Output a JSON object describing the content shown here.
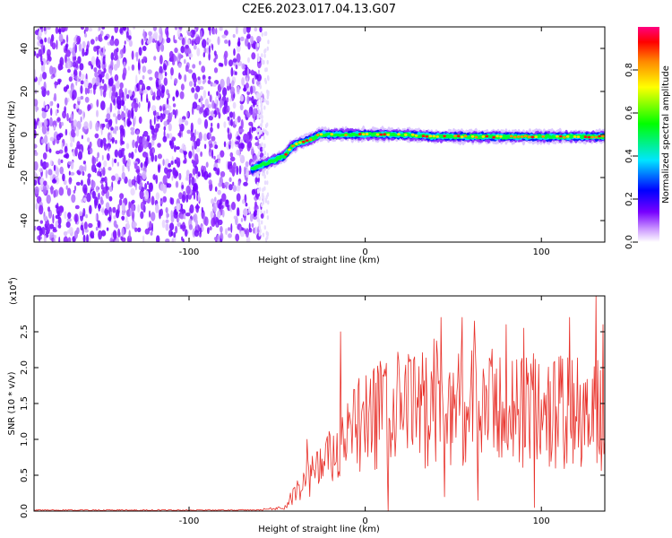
{
  "title": "C2E6.2023.017.04.13.G07",
  "chart_data": [
    {
      "type": "heatmap",
      "xlabel": "Height of straight line (km)",
      "ylabel": "Frequency (Hz)",
      "xlim": [
        -188,
        136
      ],
      "ylim": [
        -50,
        50
      ],
      "xticks": [
        -100,
        0,
        100
      ],
      "yticks": [
        -40,
        -20,
        0,
        20,
        40
      ],
      "noise_region_x": [
        -188,
        -58
      ],
      "signal_trace": [
        {
          "x": -64,
          "y": -16
        },
        {
          "x": -58,
          "y": -14
        },
        {
          "x": -52,
          "y": -12
        },
        {
          "x": -46,
          "y": -10
        },
        {
          "x": -42,
          "y": -6
        },
        {
          "x": -38,
          "y": -4
        },
        {
          "x": -34,
          "y": -3
        },
        {
          "x": -30,
          "y": -2
        },
        {
          "x": -26,
          "y": 0
        },
        {
          "x": -20,
          "y": 0
        },
        {
          "x": -10,
          "y": 0
        },
        {
          "x": 0,
          "y": 0
        },
        {
          "x": 20,
          "y": 0
        },
        {
          "x": 40,
          "y": -1
        },
        {
          "x": 60,
          "y": -1
        },
        {
          "x": 80,
          "y": -1
        },
        {
          "x": 100,
          "y": -1
        },
        {
          "x": 120,
          "y": -1
        },
        {
          "x": 136,
          "y": -1
        }
      ],
      "colorbar": {
        "label": "Normalized spectral amplitude",
        "ticks": [
          "0.0",
          "0.2",
          "0.4",
          "0.6",
          "0.8"
        ],
        "colors": [
          "#ffffff",
          "#cc99ff",
          "#7700ff",
          "#0000ff",
          "#00e5ff",
          "#00ff00",
          "#ffff00",
          "#ff8800",
          "#ff0000",
          "#ff0080"
        ]
      }
    },
    {
      "type": "line",
      "xlabel": "Height of straight line (km)",
      "ylabel": "SNR (10 * v/v)",
      "y_multiplier": "(x10",
      "y_multiplier_exp": "4",
      "y_multiplier_close": ")",
      "xlim": [
        -188,
        136
      ],
      "ylim": [
        0,
        30000
      ],
      "xticks": [
        -100,
        0,
        100
      ],
      "yticks": [
        {
          "v": 0,
          "label": "0.0"
        },
        {
          "v": 5000,
          "label": "0.5"
        },
        {
          "v": 10000,
          "label": "1.0"
        },
        {
          "v": 15000,
          "label": "1.5"
        },
        {
          "v": 20000,
          "label": "2.0"
        },
        {
          "v": 25000,
          "label": "2.5"
        }
      ],
      "color": "#e8312a",
      "envelope": [
        {
          "x": -188,
          "y": 200
        },
        {
          "x": -60,
          "y": 200
        },
        {
          "x": -45,
          "y": 600
        },
        {
          "x": -38,
          "y": 4000
        },
        {
          "x": -30,
          "y": 6000
        },
        {
          "x": -22,
          "y": 8000
        },
        {
          "x": -14,
          "y": 9000
        },
        {
          "x": -5,
          "y": 13000
        },
        {
          "x": 5,
          "y": 15000
        },
        {
          "x": 20,
          "y": 16000
        },
        {
          "x": 40,
          "y": 17000
        },
        {
          "x": 60,
          "y": 16500
        },
        {
          "x": 80,
          "y": 16000
        },
        {
          "x": 100,
          "y": 16000
        },
        {
          "x": 120,
          "y": 15500
        },
        {
          "x": 136,
          "y": 15000
        }
      ],
      "spikes": [
        {
          "x": -33,
          "y": 10000
        },
        {
          "x": -14,
          "y": 25000
        },
        {
          "x": -10,
          "y": 15000
        },
        {
          "x": 10,
          "y": 19000
        },
        {
          "x": 26,
          "y": 21000
        },
        {
          "x": 39,
          "y": 24000
        },
        {
          "x": 43,
          "y": 27000
        },
        {
          "x": 55,
          "y": 27000
        },
        {
          "x": 62,
          "y": 26500
        },
        {
          "x": 80,
          "y": 26000
        },
        {
          "x": 90,
          "y": 25500
        },
        {
          "x": 116,
          "y": 27000
        },
        {
          "x": 131,
          "y": 30000
        },
        {
          "x": 135,
          "y": 26000
        }
      ],
      "dips": [
        {
          "x": 13,
          "y": 0
        },
        {
          "x": 45,
          "y": 2000
        },
        {
          "x": 64,
          "y": 1500
        },
        {
          "x": 96,
          "y": 500
        },
        {
          "x": 131,
          "y": 1000
        }
      ]
    }
  ]
}
